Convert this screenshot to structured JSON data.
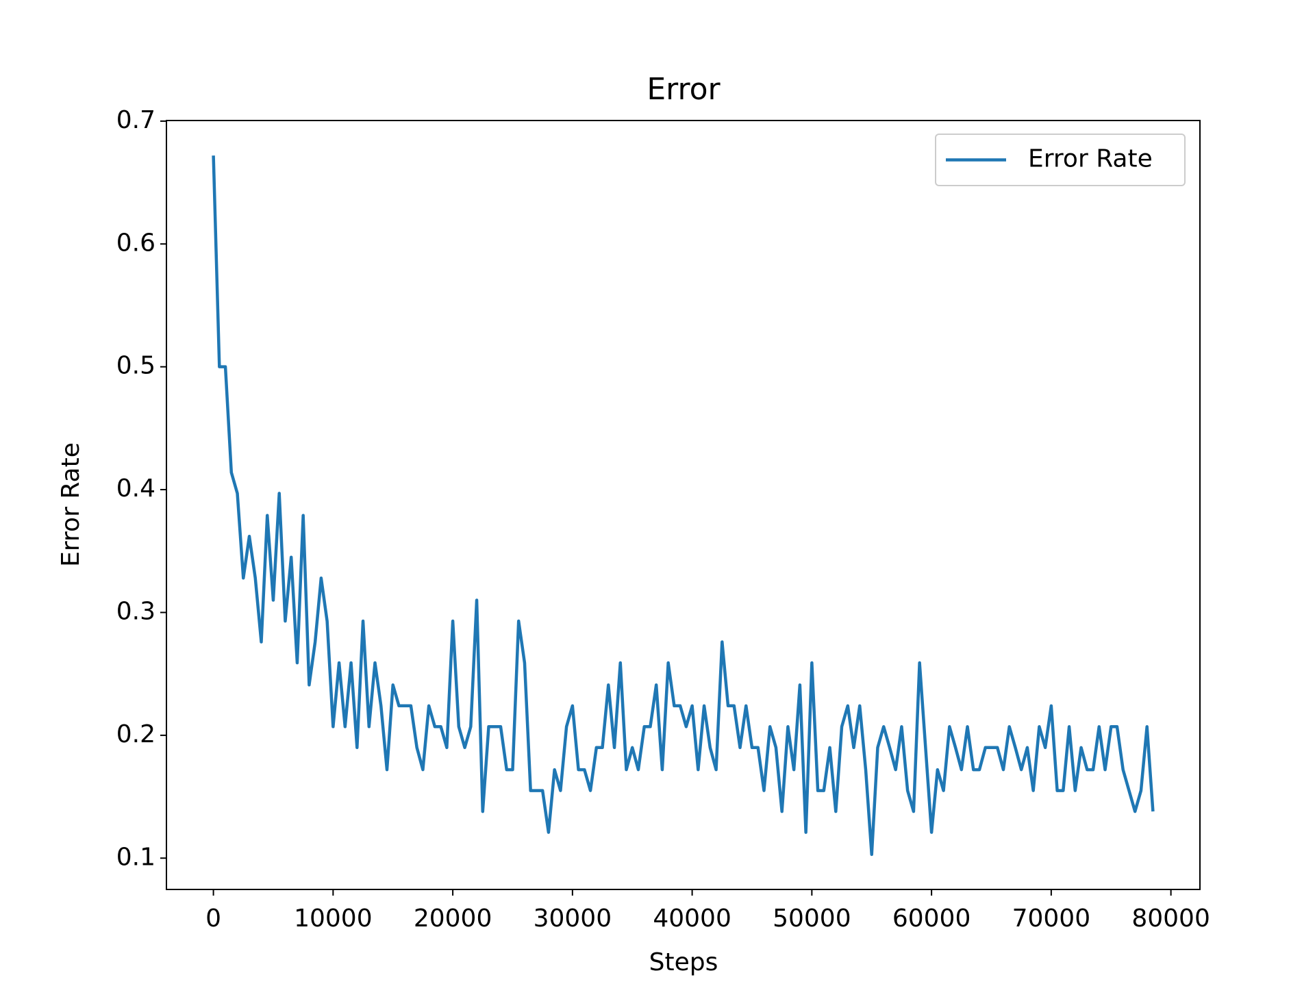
{
  "chart_data": {
    "type": "line",
    "title": "Error",
    "x_label": "Steps",
    "y_label": "Error Rate",
    "x": [
      0,
      500,
      1000,
      1500,
      2000,
      2500,
      3000,
      3500,
      4000,
      4500,
      5000,
      5500,
      6000,
      6500,
      7000,
      7500,
      8000,
      8500,
      9000,
      9500,
      10000,
      10500,
      11000,
      11500,
      12000,
      12500,
      13000,
      13500,
      14000,
      14500,
      15000,
      15500,
      16000,
      16500,
      17000,
      17500,
      18000,
      18500,
      19000,
      19500,
      20000,
      20500,
      21000,
      21500,
      22000,
      22500,
      23000,
      23500,
      24000,
      24500,
      25000,
      25500,
      26000,
      26500,
      27000,
      27500,
      28000,
      28500,
      29000,
      29500,
      30000,
      30500,
      31000,
      31500,
      32000,
      32500,
      33000,
      33500,
      34000,
      34500,
      35000,
      35500,
      36000,
      36500,
      37000,
      37500,
      38000,
      38500,
      39000,
      39500,
      40000,
      40500,
      41000,
      41500,
      42000,
      42500,
      43000,
      43500,
      44000,
      44500,
      45000,
      45500,
      46000,
      46500,
      47000,
      47500,
      48000,
      48500,
      49000,
      49500,
      50000,
      50500,
      51000,
      51500,
      52000,
      52500,
      53000,
      53500,
      54000,
      54500,
      55000,
      55500,
      56000,
      56500,
      57000,
      57500,
      58000,
      58500,
      59000,
      59500,
      60000,
      60500,
      61000,
      61500,
      62000,
      62500,
      63000,
      63500,
      64000,
      64500,
      65000,
      65500,
      66000,
      66500,
      67000,
      67500,
      68000,
      68500,
      69000,
      69500,
      70000,
      70500,
      71000,
      71500,
      72000,
      72500,
      73000,
      73500,
      74000,
      74500,
      75000,
      75500,
      76000,
      76500,
      77000,
      77500,
      78000,
      78500
    ],
    "series": [
      {
        "name": "Error Rate",
        "color": "#1f77b4",
        "values": [
          0.672,
          0.5,
          0.5,
          0.414,
          0.397,
          0.328,
          0.362,
          0.328,
          0.276,
          0.379,
          0.31,
          0.397,
          0.293,
          0.345,
          0.259,
          0.379,
          0.241,
          0.276,
          0.328,
          0.293,
          0.207,
          0.259,
          0.207,
          0.259,
          0.19,
          0.293,
          0.207,
          0.259,
          0.224,
          0.172,
          0.241,
          0.224,
          0.224,
          0.224,
          0.19,
          0.172,
          0.224,
          0.207,
          0.207,
          0.19,
          0.293,
          0.207,
          0.19,
          0.207,
          0.31,
          0.138,
          0.207,
          0.207,
          0.207,
          0.172,
          0.172,
          0.293,
          0.259,
          0.155,
          0.155,
          0.155,
          0.121,
          0.172,
          0.155,
          0.207,
          0.224,
          0.172,
          0.172,
          0.155,
          0.19,
          0.19,
          0.241,
          0.19,
          0.259,
          0.172,
          0.19,
          0.172,
          0.207,
          0.207,
          0.241,
          0.172,
          0.259,
          0.224,
          0.224,
          0.207,
          0.224,
          0.172,
          0.224,
          0.19,
          0.172,
          0.276,
          0.224,
          0.224,
          0.19,
          0.224,
          0.19,
          0.19,
          0.155,
          0.207,
          0.19,
          0.138,
          0.207,
          0.172,
          0.241,
          0.121,
          0.259,
          0.155,
          0.155,
          0.19,
          0.138,
          0.207,
          0.224,
          0.19,
          0.224,
          0.172,
          0.103,
          0.19,
          0.207,
          0.19,
          0.172,
          0.207,
          0.155,
          0.138,
          0.259,
          0.19,
          0.121,
          0.172,
          0.155,
          0.207,
          0.19,
          0.172,
          0.207,
          0.172,
          0.172,
          0.19,
          0.19,
          0.19,
          0.172,
          0.207,
          0.19,
          0.172,
          0.19,
          0.155,
          0.207,
          0.19,
          0.224,
          0.155,
          0.155,
          0.207,
          0.155,
          0.19,
          0.172,
          0.172,
          0.207,
          0.172,
          0.207,
          0.207,
          0.172,
          0.155,
          0.138,
          0.155,
          0.207,
          0.138
        ]
      }
    ],
    "xlim": [
      -3925,
      82425
    ],
    "ylim": [
      0.0745,
      0.7005
    ],
    "xticks": [
      0,
      10000,
      20000,
      30000,
      40000,
      50000,
      60000,
      70000,
      80000
    ],
    "yticks": [
      0.1,
      0.2,
      0.3,
      0.4,
      0.5,
      0.6,
      0.7
    ],
    "legend": "upper right"
  }
}
